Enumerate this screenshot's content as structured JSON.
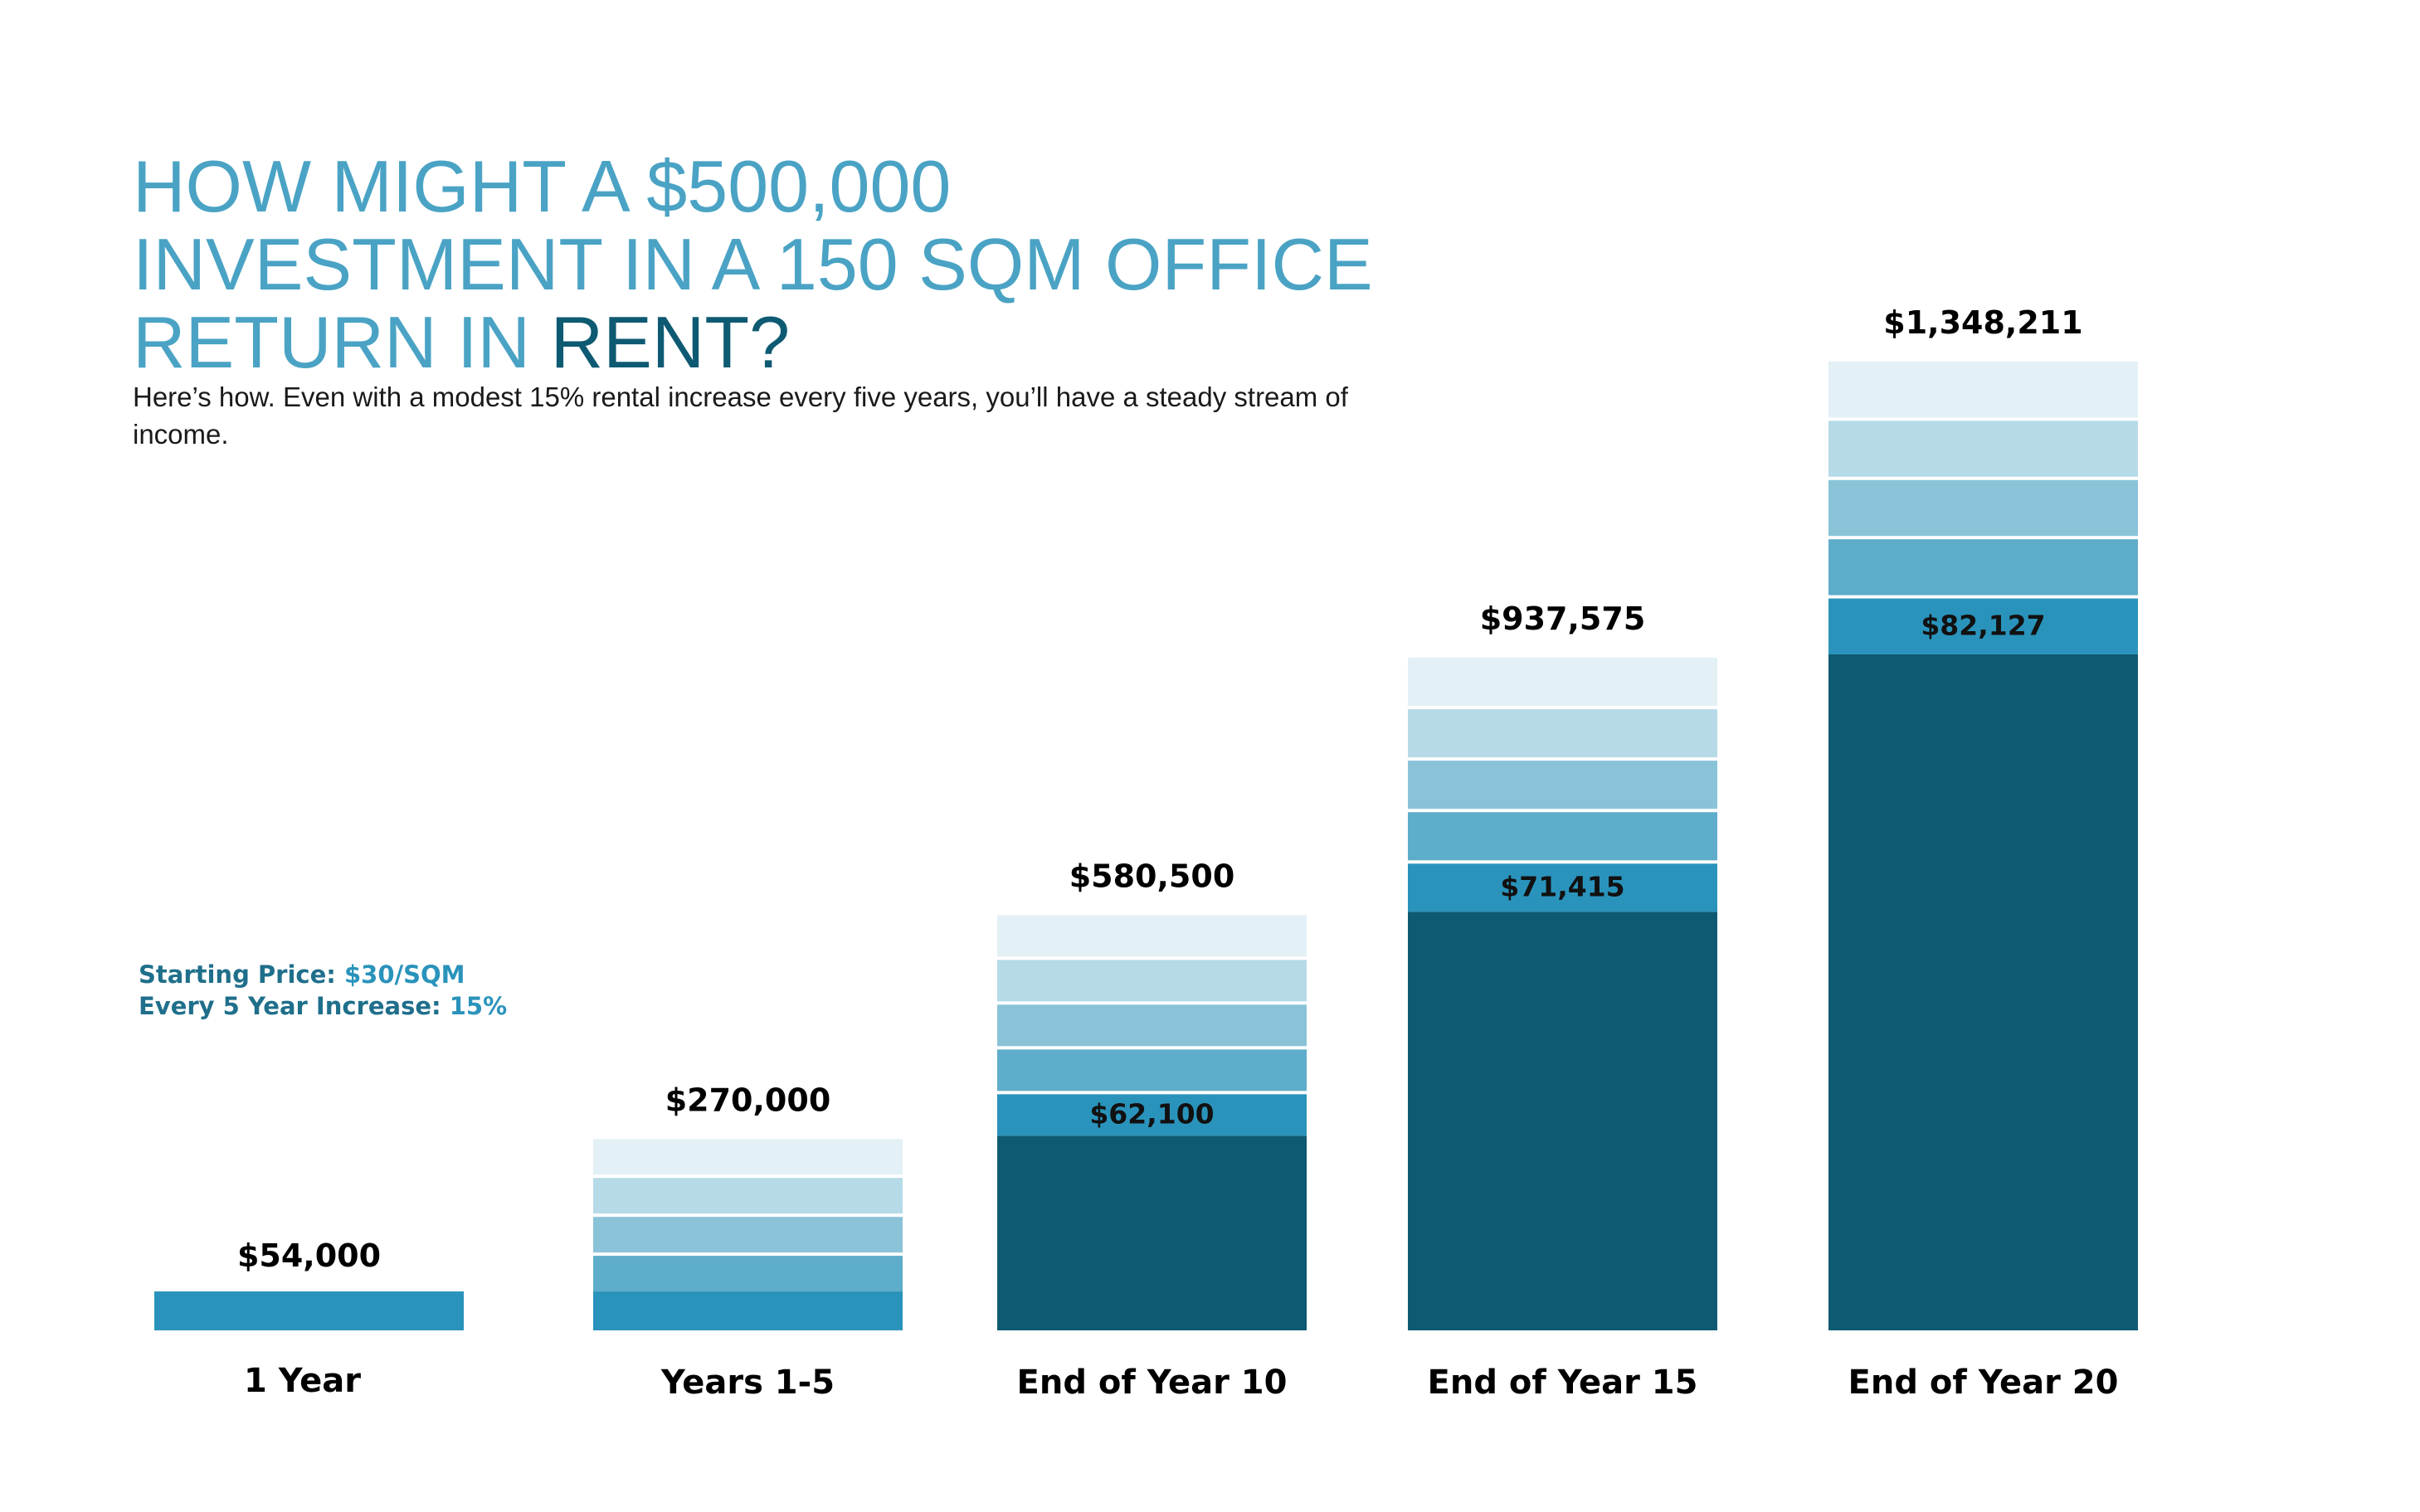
{
  "title": {
    "line1": "HOW MIGHT A $500,000",
    "line2": "INVESTMENT IN A 150 SQM OFFICE",
    "line3_prefix": "RETURN IN",
    "line3_accent": "RENT?"
  },
  "subtitle": "Here’s how. Even with a modest 15% rental increase every five years, you’ll have a steady stream of income.",
  "params": {
    "starting_label": "Starting Price:",
    "starting_value": "$30/SQM",
    "increase_label": "Every 5 Year Increase:",
    "increase_value": "15%"
  },
  "colors": {
    "title": "#4aa3c4",
    "title_accent": "#0e5a72",
    "dark": "#0e5a72",
    "segments": [
      "#2a93bb",
      "#5eadca",
      "#8ac3d8",
      "#b6dae8",
      "#e3f0f6"
    ]
  },
  "chart_data": {
    "type": "bar",
    "stacked": true,
    "categories": [
      "1 Year",
      "Years 1-5",
      "End of Year 10",
      "End of Year 15",
      "End of Year 20"
    ],
    "totals": [
      54000,
      270000,
      580500,
      937575,
      1348211
    ],
    "total_labels": [
      "$54,000",
      "$270,000",
      "$580,500",
      "$937,575",
      "$1,348,211"
    ],
    "annual_rent": [
      54000,
      54000,
      62100,
      71415,
      82127
    ],
    "annual_rent_labels": [
      "",
      "",
      "$62,100",
      "$71,415",
      "$82,127"
    ],
    "prior_total": [
      0,
      0,
      270000,
      580500,
      937575
    ],
    "stack_years": [
      1,
      5,
      5,
      5,
      5
    ],
    "ylim": [
      0,
      1348211
    ]
  }
}
